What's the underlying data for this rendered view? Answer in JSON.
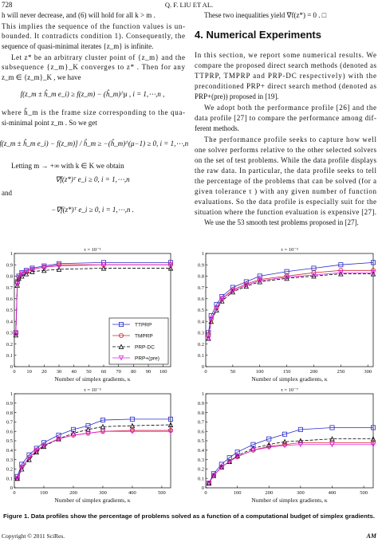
{
  "header": {
    "page": "728",
    "running_title": "Q. F. LIU   ET   AL."
  },
  "left_column": [
    "h will never decrease, and (6) will hold for all  k > m .",
    "This implies the sequence of the function values is un-",
    "bounded. It contradicts condition 1). Consequently, the",
    "sequence of quasi-minimal iterates {z_m} is infinite.",
    "Let  z*  be an arbitrary cluster point of  {z_m}  and the",
    "subsequence  {z_m}_K  converges to  z* . Then for any",
    "z_m ∈ {z_m}_K , we have",
    "f(z_m ± ĥ_m e_i) ≥ f(z_m) − (ĥ_m)^μ ,    i = 1,⋯,n ,",
    "where  ĥ_m  is the frame size corresponding to the qua-",
    "si-minimal point  z_m . So we get",
    "[f(z_m ± ĥ_m e_i) − f(z_m)] / ĥ_m ≥ −(ĥ_m)^(μ−1) ≥ 0,  i = 1,⋯,n",
    "Letting  m → +∞  with  k ∈ K  we obtain",
    "∇f(z*)ᵀ e_i ≥ 0,   i = 1,⋯,n",
    "and",
    "−∇f(z*)ᵀ e_i ≥ 0,   i = 1,⋯,n ."
  ],
  "right_column": [
    "These two inequalities yield  ∇f(z*) = 0 . □",
    "4. Numerical Experiments",
    "In this section, we report some numerical results. We",
    "compare the proposed direct search methods (denoted as",
    "TTPRP, TMPRP and PRP-DC respectively) with the",
    "preconditioned PRP+ direct search method (denoted as",
    "PRP+(pre)) proposed in [19].",
    "We adopt both the performance profile [26] and the",
    "data profile [27] to compare the performance among dif-",
    "ferent methods.",
    "The performance profile seeks to capture how well",
    "one solver performs relative to the other selected solvers",
    "on the set of test problems. While the data profile displays",
    "the raw data. In particular, the data profile seeks to tell",
    "the percentage of the problems that can be solved (for a",
    "given tolerance  τ ) with any given number of function",
    "evaluations. So the data profile is especially suit for the",
    "situation where the function evaluation is expensive [27].",
    "We use the 53 smooth test problems proposed in [27]."
  ],
  "chart_data": [
    {
      "type": "line",
      "title": "τ = 10⁻¹",
      "x_label": "Number of simplex gradients, κ",
      "xlim": [
        0,
        105
      ],
      "xticks": [
        0,
        10,
        20,
        30,
        40,
        50,
        60,
        70,
        80,
        90,
        100
      ],
      "ylim": [
        0,
        1
      ],
      "yticks": [
        0,
        0.1,
        0.2,
        0.3,
        0.4,
        0.5,
        0.6,
        0.7,
        0.8,
        0.9,
        1
      ],
      "legend": "lower right",
      "x": [
        1,
        2,
        3,
        5,
        8,
        12,
        20,
        30,
        60,
        105
      ],
      "series": [
        {
          "name": "TTPRP",
          "color": "#2a2ac8",
          "marker": "square",
          "dash": false,
          "values": [
            0.3,
            0.75,
            0.8,
            0.83,
            0.85,
            0.87,
            0.89,
            0.91,
            0.92,
            0.92
          ]
        },
        {
          "name": "TMPRP",
          "color": "#d02828",
          "marker": "circle",
          "dash": false,
          "values": [
            0.3,
            0.74,
            0.79,
            0.82,
            0.84,
            0.86,
            0.88,
            0.9,
            0.9,
            0.9
          ]
        },
        {
          "name": "PRP-DC",
          "color": "#000000",
          "marker": "triangle",
          "dash": true,
          "values": [
            0.28,
            0.72,
            0.78,
            0.8,
            0.82,
            0.84,
            0.85,
            0.86,
            0.87,
            0.87
          ]
        },
        {
          "name": "PRP+(pre)",
          "color": "#e020e0",
          "marker": "down-triangle",
          "dash": false,
          "values": [
            0.29,
            0.73,
            0.79,
            0.82,
            0.84,
            0.86,
            0.88,
            0.89,
            0.9,
            0.9
          ]
        }
      ]
    },
    {
      "type": "line",
      "title": "τ = 10⁻³",
      "x_label": "Number of simplex gradients, κ",
      "xlim": [
        0,
        310
      ],
      "xticks": [
        0,
        50,
        100,
        150,
        200,
        250,
        300
      ],
      "ylim": [
        0,
        1
      ],
      "yticks": [
        0,
        0.1,
        0.2,
        0.3,
        0.4,
        0.5,
        0.6,
        0.7,
        0.8,
        0.9,
        1
      ],
      "legend": null,
      "x": [
        5,
        10,
        20,
        30,
        50,
        75,
        100,
        150,
        200,
        250,
        310
      ],
      "series": [
        {
          "name": "TTPRP",
          "color": "#2a2ac8",
          "marker": "square",
          "dash": false,
          "values": [
            0.3,
            0.45,
            0.55,
            0.62,
            0.7,
            0.75,
            0.8,
            0.84,
            0.87,
            0.9,
            0.92
          ]
        },
        {
          "name": "TMPRP",
          "color": "#d02828",
          "marker": "circle",
          "dash": false,
          "values": [
            0.28,
            0.42,
            0.52,
            0.6,
            0.68,
            0.73,
            0.77,
            0.8,
            0.83,
            0.85,
            0.85
          ]
        },
        {
          "name": "PRP-DC",
          "color": "#000000",
          "marker": "triangle",
          "dash": true,
          "values": [
            0.25,
            0.4,
            0.5,
            0.58,
            0.66,
            0.71,
            0.75,
            0.78,
            0.8,
            0.82,
            0.82
          ]
        },
        {
          "name": "PRP+(pre)",
          "color": "#e020e0",
          "marker": "down-triangle",
          "dash": false,
          "values": [
            0.25,
            0.42,
            0.52,
            0.6,
            0.67,
            0.72,
            0.76,
            0.79,
            0.81,
            0.83,
            0.83
          ]
        }
      ]
    },
    {
      "type": "line",
      "title": "τ = 10⁻⁵",
      "x_label": "Number of simplex gradients, κ",
      "xlim": [
        0,
        530
      ],
      "xticks": [
        0,
        100,
        200,
        300,
        400,
        500
      ],
      "ylim": [
        0,
        1
      ],
      "yticks": [
        0,
        0.1,
        0.2,
        0.3,
        0.4,
        0.5,
        0.6,
        0.7,
        0.8,
        0.9,
        1
      ],
      "legend": null,
      "x": [
        10,
        25,
        50,
        75,
        100,
        150,
        200,
        250,
        300,
        400,
        530
      ],
      "series": [
        {
          "name": "TTPRP",
          "color": "#2a2ac8",
          "marker": "square",
          "dash": false,
          "values": [
            0.12,
            0.25,
            0.35,
            0.42,
            0.48,
            0.56,
            0.62,
            0.66,
            0.72,
            0.73,
            0.73
          ]
        },
        {
          "name": "TMPRP",
          "color": "#d02828",
          "marker": "circle",
          "dash": false,
          "values": [
            0.1,
            0.22,
            0.32,
            0.39,
            0.45,
            0.52,
            0.56,
            0.58,
            0.6,
            0.61,
            0.61
          ]
        },
        {
          "name": "PRP-DC",
          "color": "#000000",
          "marker": "triangle",
          "dash": true,
          "values": [
            0.1,
            0.2,
            0.3,
            0.38,
            0.44,
            0.52,
            0.58,
            0.62,
            0.65,
            0.66,
            0.67
          ]
        },
        {
          "name": "PRP+(pre)",
          "color": "#e020e0",
          "marker": "down-triangle",
          "dash": false,
          "values": [
            0.1,
            0.22,
            0.32,
            0.4,
            0.45,
            0.52,
            0.56,
            0.58,
            0.6,
            0.6,
            0.6
          ]
        }
      ]
    },
    {
      "type": "line",
      "title": "τ = 10⁻⁷",
      "x_label": "Number of simplex gradients, κ",
      "xlim": [
        0,
        530
      ],
      "xticks": [
        0,
        100,
        200,
        300,
        400,
        500
      ],
      "ylim": [
        0,
        1
      ],
      "yticks": [
        0,
        0.1,
        0.2,
        0.3,
        0.4,
        0.5,
        0.6,
        0.7,
        0.8,
        0.9,
        1
      ],
      "legend": null,
      "x": [
        10,
        25,
        50,
        75,
        100,
        150,
        200,
        250,
        300,
        400,
        530
      ],
      "series": [
        {
          "name": "TTPRP",
          "color": "#2a2ac8",
          "marker": "square",
          "dash": false,
          "values": [
            0.05,
            0.15,
            0.25,
            0.32,
            0.38,
            0.46,
            0.52,
            0.57,
            0.62,
            0.64,
            0.64
          ]
        },
        {
          "name": "TMPRP",
          "color": "#d02828",
          "marker": "circle",
          "dash": false,
          "values": [
            0.05,
            0.13,
            0.22,
            0.28,
            0.33,
            0.4,
            0.44,
            0.46,
            0.48,
            0.48,
            0.48
          ]
        },
        {
          "name": "PRP-DC",
          "color": "#000000",
          "marker": "triangle",
          "dash": true,
          "values": [
            0.05,
            0.13,
            0.22,
            0.28,
            0.34,
            0.42,
            0.46,
            0.49,
            0.5,
            0.52,
            0.52
          ]
        },
        {
          "name": "PRP+(pre)",
          "color": "#e020e0",
          "marker": "down-triangle",
          "dash": false,
          "values": [
            0.05,
            0.13,
            0.22,
            0.28,
            0.33,
            0.4,
            0.43,
            0.45,
            0.46,
            0.46,
            0.46
          ]
        }
      ]
    }
  ],
  "figure_caption": "Figure 1. Data profiles show the percentage of problems solved as a function of a computational budget of simplex gradients.",
  "footer": {
    "copyright": "Copyright © 2011 SciRes.",
    "journal": "AM"
  }
}
